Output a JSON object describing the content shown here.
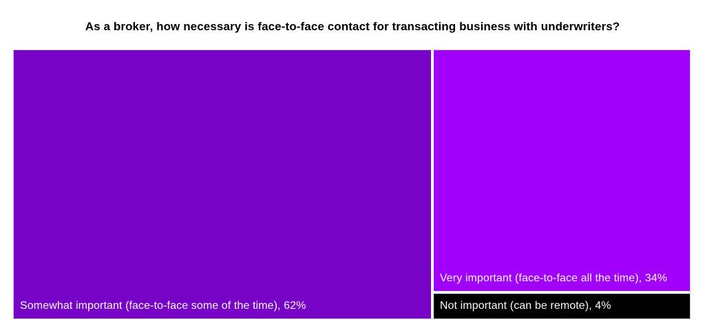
{
  "title": "As a broker, how necessary is face-to-face contact for transacting business with underwriters?",
  "colors": {
    "somewhat_important": "#7603c6",
    "very_important": "#a101fb",
    "not_important": "#000000",
    "label_text": "#fbf7fd",
    "background": "#ffffff",
    "border": "#c9c9cf"
  },
  "chart_data": {
    "type": "treemap",
    "title": "As a broker, how necessary is face-to-face contact for transacting business with underwriters?",
    "legend": "none",
    "unit": "%",
    "segments": [
      {
        "label": "Somewhat important (face-to-face some of the time)",
        "value": 62,
        "display": "Somewhat important (face-to-face some of the time), 62%",
        "color": "#7603c6",
        "position": "left-full-height"
      },
      {
        "label": "Very important (face-to-face all the time)",
        "value": 34,
        "display": "Very important (face-to-face all the time), 34%",
        "color": "#a101fb",
        "position": "right-top"
      },
      {
        "label": "Not important (can be remote)",
        "value": 4,
        "display": "Not important (can be remote), 4%",
        "color": "#000000",
        "position": "right-bottom"
      }
    ]
  }
}
